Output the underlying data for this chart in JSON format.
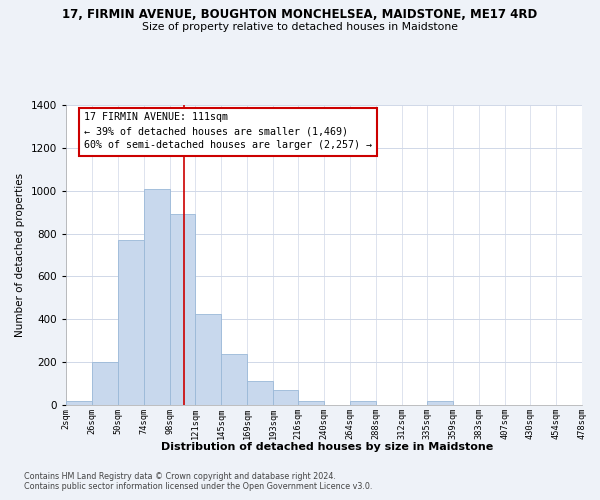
{
  "title": "17, FIRMIN AVENUE, BOUGHTON MONCHELSEA, MAIDSTONE, ME17 4RD",
  "subtitle": "Size of property relative to detached houses in Maidstone",
  "xlabel": "Distribution of detached houses by size in Maidstone",
  "ylabel": "Number of detached properties",
  "bar_color": "#c8d8ed",
  "bar_edge_color": "#9ab8d8",
  "vline_x": 111,
  "vline_color": "#cc0000",
  "annotation_title": "17 FIRMIN AVENUE: 111sqm",
  "annotation_line1": "← 39% of detached houses are smaller (1,469)",
  "annotation_line2": "60% of semi-detached houses are larger (2,257) →",
  "annotation_box_color": "white",
  "annotation_box_edge": "#cc0000",
  "footnote1": "Contains HM Land Registry data © Crown copyright and database right 2024.",
  "footnote2": "Contains public sector information licensed under the Open Government Licence v3.0.",
  "bin_edges": [
    2,
    26,
    50,
    74,
    98,
    121,
    145,
    169,
    193,
    216,
    240,
    264,
    288,
    312,
    335,
    359,
    383,
    407,
    430,
    454,
    478
  ],
  "bin_heights": [
    20,
    200,
    770,
    1010,
    890,
    425,
    240,
    110,
    68,
    20,
    0,
    20,
    0,
    0,
    18,
    0,
    0,
    0,
    0,
    0
  ],
  "tick_labels": [
    "2sqm",
    "26sqm",
    "50sqm",
    "74sqm",
    "98sqm",
    "121sqm",
    "145sqm",
    "169sqm",
    "193sqm",
    "216sqm",
    "240sqm",
    "264sqm",
    "288sqm",
    "312sqm",
    "335sqm",
    "359sqm",
    "383sqm",
    "407sqm",
    "430sqm",
    "454sqm",
    "478sqm"
  ],
  "ylim": [
    0,
    1400
  ],
  "yticks": [
    0,
    200,
    400,
    600,
    800,
    1000,
    1200,
    1400
  ],
  "background_color": "#eef2f8",
  "plot_bg_color": "#ffffff",
  "grid_color": "#d0d8e8"
}
